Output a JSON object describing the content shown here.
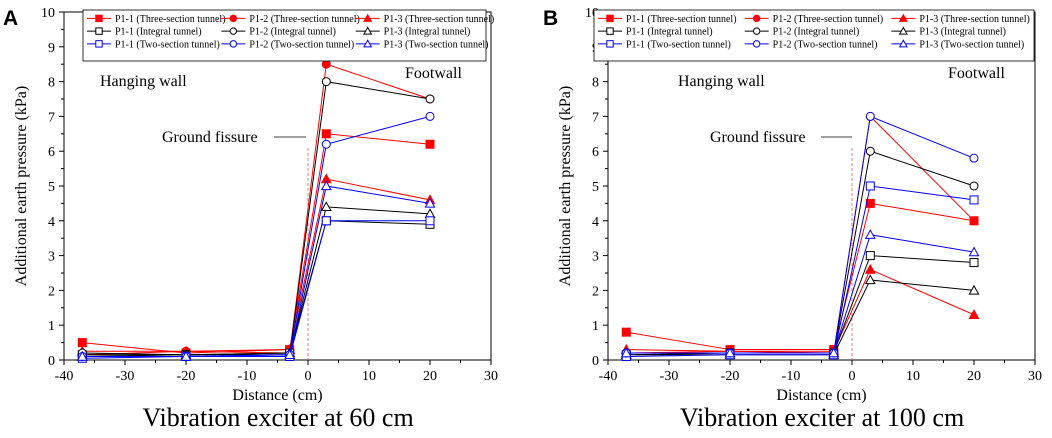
{
  "figure": {
    "panels": [
      {
        "letter": "A",
        "caption": "Vibration exciter at 60 cm"
      },
      {
        "letter": "B",
        "caption": "Vibration exciter at 100 cm"
      }
    ]
  },
  "styles": {
    "Three-section tunnel": {
      "color": "#ff0000",
      "filled": true
    },
    "Integral tunnel": {
      "color": "#000000",
      "filled": false
    },
    "Two-section tunnel": {
      "color": "#0000ff",
      "filled": false
    }
  },
  "chart_data": [
    {
      "type": "line",
      "panel": "A",
      "title": "Vibration exciter at 60 cm",
      "xlabel": "Distance (cm)",
      "ylabel": "Additional earth pressure (kPa)",
      "xlim": [
        -40,
        30
      ],
      "ylim": [
        0,
        10
      ],
      "xticks": [
        -40,
        -30,
        -20,
        -10,
        0,
        10,
        20,
        30
      ],
      "yticks": [
        0,
        1,
        2,
        3,
        4,
        5,
        6,
        7,
        8,
        9,
        10
      ],
      "x": [
        -37,
        -20,
        -3,
        3,
        20
      ],
      "annotations": {
        "left_region": "Hanging wall",
        "right_region": "Footwall",
        "fissure": "Ground fissure"
      },
      "series": [
        {
          "name": "P1-1 (Three-section tunnel)",
          "tunnel": "Three-section tunnel",
          "marker": "square",
          "values": [
            0.5,
            0.2,
            0.3,
            6.5,
            6.2
          ]
        },
        {
          "name": "P1-2 (Three-section tunnel)",
          "tunnel": "Three-section tunnel",
          "marker": "circle",
          "values": [
            0.15,
            0.25,
            0.2,
            8.5,
            7.5
          ]
        },
        {
          "name": "P1-3 (Three-section tunnel)",
          "tunnel": "Three-section tunnel",
          "marker": "triangle",
          "values": [
            0.25,
            0.25,
            0.3,
            5.2,
            4.6
          ]
        },
        {
          "name": "P1-1 (Integral tunnel)",
          "tunnel": "Integral tunnel",
          "marker": "square",
          "values": [
            0.15,
            0.15,
            0.2,
            4.0,
            3.9
          ]
        },
        {
          "name": "P1-2 (Integral tunnel)",
          "tunnel": "Integral tunnel",
          "marker": "circle",
          "values": [
            0.2,
            0.15,
            0.15,
            8.0,
            7.5
          ]
        },
        {
          "name": "P1-3 (Integral tunnel)",
          "tunnel": "Integral tunnel",
          "marker": "triangle",
          "values": [
            0.1,
            0.15,
            0.2,
            4.4,
            4.2
          ]
        },
        {
          "name": "P1-1 (Two-section tunnel)",
          "tunnel": "Two-section tunnel",
          "marker": "square",
          "values": [
            0.05,
            0.1,
            0.1,
            4.0,
            4.0
          ]
        },
        {
          "name": "P1-2 (Two-section tunnel)",
          "tunnel": "Two-section tunnel",
          "marker": "circle",
          "values": [
            0.1,
            0.1,
            0.15,
            6.2,
            7.0
          ]
        },
        {
          "name": "P1-3 (Two-section tunnel)",
          "tunnel": "Two-section tunnel",
          "marker": "triangle",
          "values": [
            0.1,
            0.1,
            0.15,
            5.0,
            4.5
          ]
        }
      ]
    },
    {
      "type": "line",
      "panel": "B",
      "title": "Vibration exciter at 100 cm",
      "xlabel": "Distance (cm)",
      "ylabel": "Additional earth pressure (kPa)",
      "xlim": [
        -40,
        30
      ],
      "ylim": [
        0,
        10
      ],
      "xticks": [
        -40,
        -30,
        -20,
        -10,
        0,
        10,
        20,
        30
      ],
      "yticks": [
        0,
        1,
        2,
        3,
        4,
        5,
        6,
        7,
        8,
        9,
        10
      ],
      "x": [
        -37,
        -20,
        -3,
        3,
        20
      ],
      "annotations": {
        "left_region": "Hanging wall",
        "right_region": "Footwall",
        "fissure": "Ground fissure"
      },
      "series": [
        {
          "name": "P1-1 (Three-section tunnel)",
          "tunnel": "Three-section tunnel",
          "marker": "square",
          "values": [
            0.8,
            0.3,
            0.3,
            4.5,
            4.0
          ]
        },
        {
          "name": "P1-2 (Three-section tunnel)",
          "tunnel": "Three-section tunnel",
          "marker": "circle",
          "values": [
            0.2,
            0.25,
            0.2,
            7.0,
            4.0
          ]
        },
        {
          "name": "P1-3 (Three-section tunnel)",
          "tunnel": "Three-section tunnel",
          "marker": "triangle",
          "values": [
            0.3,
            0.25,
            0.25,
            2.6,
            1.3
          ]
        },
        {
          "name": "P1-1 (Integral tunnel)",
          "tunnel": "Integral tunnel",
          "marker": "square",
          "values": [
            0.15,
            0.2,
            0.2,
            3.0,
            2.8
          ]
        },
        {
          "name": "P1-2 (Integral tunnel)",
          "tunnel": "Integral tunnel",
          "marker": "circle",
          "values": [
            0.2,
            0.2,
            0.2,
            6.0,
            5.0
          ]
        },
        {
          "name": "P1-3 (Integral tunnel)",
          "tunnel": "Integral tunnel",
          "marker": "triangle",
          "values": [
            0.15,
            0.15,
            0.15,
            2.3,
            2.0
          ]
        },
        {
          "name": "P1-1 (Two-section tunnel)",
          "tunnel": "Two-section tunnel",
          "marker": "square",
          "values": [
            0.1,
            0.15,
            0.15,
            5.0,
            4.6
          ]
        },
        {
          "name": "P1-2 (Two-section tunnel)",
          "tunnel": "Two-section tunnel",
          "marker": "circle",
          "values": [
            0.2,
            0.2,
            0.2,
            7.0,
            5.8
          ]
        },
        {
          "name": "P1-3 (Two-section tunnel)",
          "tunnel": "Two-section tunnel",
          "marker": "triangle",
          "values": [
            0.2,
            0.2,
            0.2,
            3.6,
            3.1
          ]
        }
      ]
    }
  ]
}
